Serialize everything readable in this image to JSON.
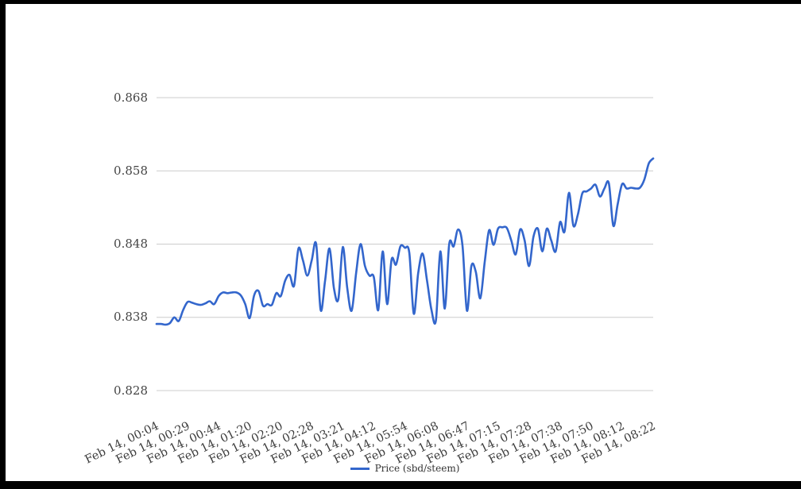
{
  "frame": {
    "border_color": "#000000",
    "background": "#ffffff"
  },
  "legend": {
    "label": "Price (sbd/steem)",
    "swatch_color": "#3366cc"
  },
  "chart_data": {
    "type": "line",
    "title": "",
    "xlabel": "",
    "ylabel": "",
    "grid": true,
    "legend_position": "bottom",
    "line_color": "#3366cc",
    "gridline_color": "#cccccc",
    "y_tick_labels": [
      "0.868",
      "0.858",
      "0.848",
      "0.838",
      "0.828"
    ],
    "y_ticks": [
      0.868,
      0.858,
      0.848,
      0.838,
      0.828
    ],
    "ylim": [
      0.8225,
      0.8705
    ],
    "x_tick_labels": [
      "Feb 14, 00:04",
      "Feb 14, 00:29",
      "Feb 14, 00:44",
      "Feb 14, 01:20",
      "Feb 14, 02:20",
      "Feb 14, 02:28",
      "Feb 14, 03:21",
      "Feb 14, 04:12",
      "Feb 14, 05:54",
      "Feb 14, 06:08",
      "Feb 14, 06:47",
      "Feb 14, 07:15",
      "Feb 14, 07:28",
      "Feb 14, 07:38",
      "Feb 14, 07:50",
      "Feb 14, 08:12",
      "Feb 14, 08:22"
    ],
    "x_tick_every": 7,
    "series": [
      {
        "name": "Price (sbd/steem)",
        "color": "#3366cc",
        "values": [
          0.8371,
          0.8371,
          0.837,
          0.8372,
          0.838,
          0.8375,
          0.839,
          0.8401,
          0.84,
          0.8398,
          0.8397,
          0.8399,
          0.8402,
          0.8398,
          0.8409,
          0.8414,
          0.8413,
          0.8414,
          0.8414,
          0.841,
          0.8398,
          0.8379,
          0.841,
          0.8416,
          0.8396,
          0.8398,
          0.8397,
          0.8413,
          0.8409,
          0.843,
          0.8438,
          0.8423,
          0.8474,
          0.8458,
          0.8437,
          0.8458,
          0.848,
          0.839,
          0.843,
          0.8474,
          0.842,
          0.8405,
          0.8476,
          0.842,
          0.8389,
          0.844,
          0.848,
          0.845,
          0.8437,
          0.8435,
          0.839,
          0.847,
          0.8398,
          0.8459,
          0.8452,
          0.8477,
          0.8475,
          0.8468,
          0.8385,
          0.844,
          0.8467,
          0.843,
          0.839,
          0.8376,
          0.847,
          0.8392,
          0.848,
          0.8477,
          0.85,
          0.8478,
          0.8389,
          0.845,
          0.8442,
          0.8406,
          0.8455,
          0.8499,
          0.8479,
          0.8501,
          0.8503,
          0.8502,
          0.8485,
          0.8466,
          0.85,
          0.8485,
          0.845,
          0.849,
          0.8501,
          0.847,
          0.8501,
          0.8485,
          0.847,
          0.851,
          0.8497,
          0.855,
          0.8505,
          0.852,
          0.8549,
          0.8552,
          0.8556,
          0.8561,
          0.8545,
          0.8556,
          0.8563,
          0.8505,
          0.8535,
          0.8562,
          0.8556,
          0.8557,
          0.8556,
          0.8557,
          0.8568,
          0.859,
          0.8597
        ]
      }
    ]
  }
}
